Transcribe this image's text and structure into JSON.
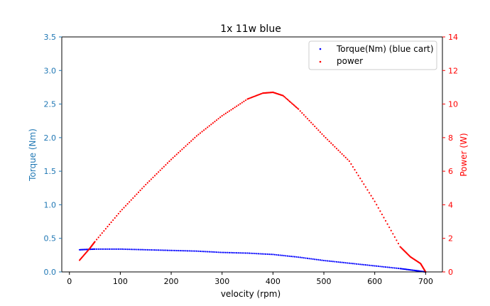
{
  "chart_data": {
    "type": "scatter",
    "title": "1x 11w blue",
    "xlabel": "velocity (rpm)",
    "ylabel_left": "Torque (Nm)",
    "ylabel_right": "Power (W)",
    "xlim": [
      -15,
      733
    ],
    "ylim_left": [
      0,
      3.5
    ],
    "ylim_right": [
      0,
      14
    ],
    "x_ticks": [
      0,
      100,
      200,
      300,
      400,
      500,
      600,
      700
    ],
    "y_ticks_left": [
      0.0,
      0.5,
      1.0,
      1.5,
      2.0,
      2.5,
      3.0,
      3.5
    ],
    "y_ticks_left_labels": [
      "0.0",
      "0.5",
      "1.0",
      "1.5",
      "2.0",
      "2.5",
      "3.0",
      "3.5"
    ],
    "y_ticks_right": [
      0,
      2,
      4,
      6,
      8,
      10,
      12,
      14
    ],
    "legend_position": "top-right",
    "colors": {
      "left_axis": "#1f77b4",
      "right_axis": "#ff0000",
      "torque": "#0000ff",
      "power": "#ff0000"
    },
    "series": [
      {
        "name": "Torque(Nm) (blue cart)",
        "axis": "left",
        "color": "#0000ff",
        "x": [
          20,
          50,
          100,
          150,
          200,
          250,
          300,
          350,
          400,
          450,
          500,
          550,
          600,
          650,
          680,
          700
        ],
        "y": [
          0.33,
          0.34,
          0.34,
          0.33,
          0.32,
          0.31,
          0.29,
          0.28,
          0.26,
          0.22,
          0.17,
          0.13,
          0.09,
          0.05,
          0.02,
          0.0
        ]
      },
      {
        "name": "power",
        "axis": "right",
        "color": "#ff0000",
        "x": [
          20,
          40,
          50,
          100,
          150,
          200,
          250,
          300,
          350,
          380,
          400,
          420,
          450,
          500,
          550,
          600,
          650,
          670,
          690,
          700
        ],
        "y": [
          0.7,
          1.4,
          1.8,
          3.6,
          5.2,
          6.7,
          8.1,
          9.3,
          10.3,
          10.65,
          10.7,
          10.5,
          9.7,
          8.1,
          6.6,
          4.2,
          1.5,
          0.9,
          0.5,
          0.0
        ]
      }
    ]
  }
}
